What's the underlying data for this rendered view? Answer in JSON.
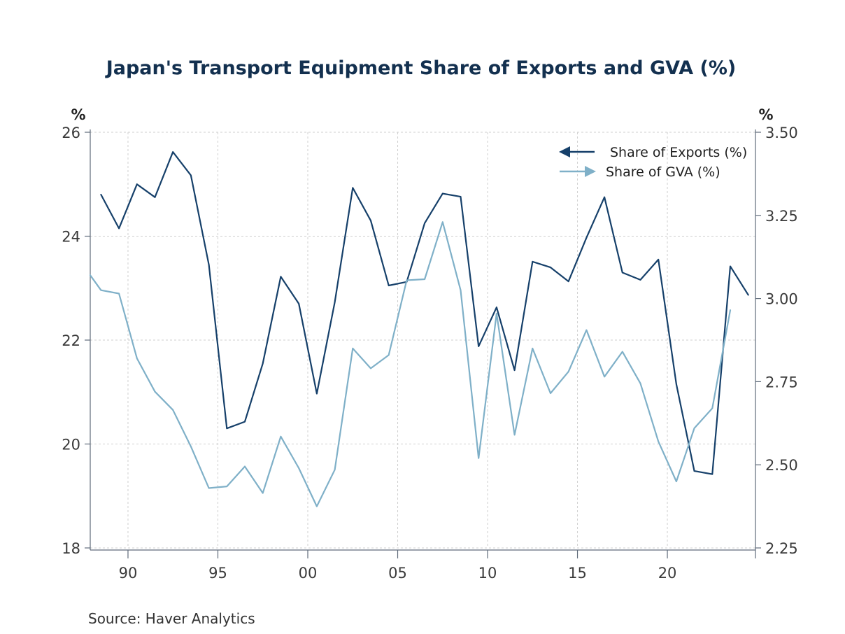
{
  "chart_data": {
    "type": "line",
    "title": "Japan's Transport Equipment Share of Exports and GVA (%)",
    "source": "Source:  Haver Analytics",
    "left_axis": {
      "unit": "%",
      "range": [
        18,
        26
      ],
      "ticks": [
        "26",
        "24",
        "22",
        "20",
        "18"
      ]
    },
    "right_axis": {
      "unit": "%",
      "range": [
        2.25,
        3.5
      ],
      "ticks": [
        "3.50",
        "3.25",
        "3.00",
        "2.75",
        "2.50",
        "2.25"
      ]
    },
    "x_ticks": [
      "90",
      "95",
      "00",
      "05",
      "10",
      "15",
      "20"
    ],
    "x_range": [
      1987.9,
      2024.9
    ],
    "grid": true,
    "legend_position": "top-right",
    "colors": {
      "exports": "#16406a",
      "gva": "#7fb0c8",
      "title": "#13304f"
    },
    "series": [
      {
        "name": "Share of Exports (%)",
        "axis": "left",
        "color": "#16406a",
        "legend_icon": "left-arrow-icon",
        "x": [
          1988.5,
          1989.5,
          1990.5,
          1991.5,
          1992.5,
          1993.5,
          1994.5,
          1995.5,
          1996.5,
          1997.5,
          1998.5,
          1999.5,
          2000.5,
          2001.5,
          2002.5,
          2003.5,
          2004.5,
          2005.5,
          2006.5,
          2007.5,
          2008.5,
          2009.5,
          2010.5,
          2011.5,
          2012.5,
          2013.5,
          2014.5,
          2015.5,
          2016.5,
          2017.5,
          2018.5,
          2019.5,
          2020.5,
          2021.5,
          2022.5,
          2023.5,
          2024.5
        ],
        "values": [
          24.8,
          24.15,
          25.0,
          24.75,
          25.62,
          25.17,
          23.45,
          20.3,
          20.43,
          21.55,
          23.22,
          22.7,
          20.97,
          22.73,
          24.93,
          24.3,
          23.05,
          23.12,
          24.25,
          24.82,
          24.76,
          21.88,
          22.63,
          21.42,
          23.51,
          23.4,
          23.13,
          23.97,
          24.75,
          23.3,
          23.16,
          23.55,
          21.15,
          19.48,
          19.42,
          23.42,
          22.87
        ]
      },
      {
        "name": "Share of GVA (%)",
        "axis": "right",
        "color": "#7fb0c8",
        "legend_icon": "right-arrow-icon",
        "x": [
          1987.9,
          1988.5,
          1989.5,
          1990.5,
          1991.5,
          1992.5,
          1993.5,
          1994.5,
          1995.5,
          1996.5,
          1997.5,
          1998.5,
          1999.5,
          2000.5,
          2001.5,
          2002.5,
          2003.5,
          2004.5,
          2005.5,
          2006.5,
          2007.5,
          2008.5,
          2009.5,
          2010.5,
          2011.5,
          2012.5,
          2013.5,
          2014.5,
          2015.5,
          2016.5,
          2017.5,
          2018.5,
          2019.5,
          2020.5,
          2021.5,
          2022.5,
          2023.5
        ],
        "values": [
          3.07,
          3.025,
          3.015,
          2.82,
          2.72,
          2.665,
          2.555,
          2.43,
          2.435,
          2.495,
          2.415,
          2.585,
          2.49,
          2.375,
          2.485,
          2.85,
          2.79,
          2.83,
          3.055,
          3.058,
          3.23,
          3.025,
          2.52,
          2.955,
          2.59,
          2.85,
          2.715,
          2.78,
          2.905,
          2.765,
          2.84,
          2.745,
          2.57,
          2.45,
          2.61,
          2.67,
          2.965
        ]
      }
    ]
  }
}
